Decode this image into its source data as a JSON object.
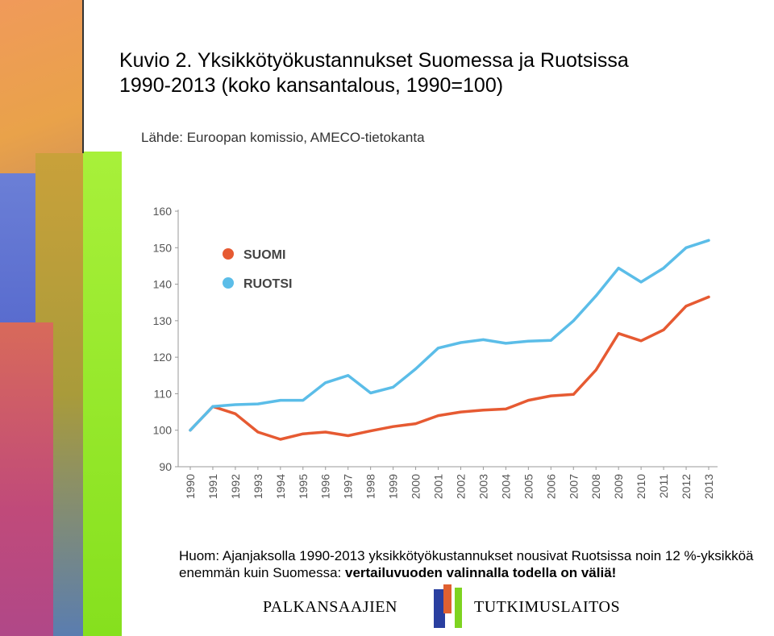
{
  "title": {
    "line1": "Kuvio 2. Yksikkötyökustannukset Suomessa ja Ruotsissa",
    "line2": "1990-2013 (koko kansantalous, 1990=100)"
  },
  "source": "Lähde: Euroopan komissio, AMECO-tietokanta",
  "note": {
    "text": "Huom:  Ajanjaksolla 1990-2013 yksikkötyökustannukset nousivat Ruotsissa noin 12 %-yksikköä enemmän kuin Suomessa: ",
    "emphasis": "vertailuvuoden valinnalla  todella on väliä!"
  },
  "logo": {
    "left_text": "PALKANSAAJIEN",
    "right_text": "TUTKIMUSLAITOS",
    "colors": [
      "#2a3fa0",
      "#e06030",
      "#7ed321"
    ]
  },
  "chart_data": {
    "type": "line",
    "x": [
      "1990",
      "1991",
      "1992",
      "1993",
      "1994",
      "1995",
      "1996",
      "1997",
      "1998",
      "1999",
      "2000",
      "2001",
      "2002",
      "2003",
      "2004",
      "2005",
      "2006",
      "2007",
      "2008",
      "2009",
      "2010",
      "2011",
      "2012",
      "2013"
    ],
    "series": [
      {
        "name": "SUOMI",
        "color": "#e65a32",
        "values": [
          100,
          106.5,
          104.5,
          99.5,
          97.5,
          99,
          99.5,
          98.5,
          99.8,
          101,
          101.8,
          104,
          105,
          105.5,
          105.8,
          108.2,
          109.4,
          109.8,
          116.5,
          126.5,
          124.5,
          127.5,
          134,
          136.5
        ]
      },
      {
        "name": "RUOTSI",
        "color": "#5bbde8",
        "values": [
          100,
          106.5,
          107,
          107.2,
          108.2,
          108.2,
          113,
          115,
          110.2,
          111.8,
          116.8,
          122.5,
          124,
          124.8,
          123.8,
          124.4,
          124.6,
          130,
          136.8,
          144.4,
          140.6,
          144.4,
          150,
          152
        ]
      }
    ],
    "yticks": [
      90,
      100,
      110,
      120,
      130,
      140,
      150,
      160
    ],
    "ylim": [
      90,
      160
    ],
    "legend_position": "top-left",
    "grid": false
  }
}
